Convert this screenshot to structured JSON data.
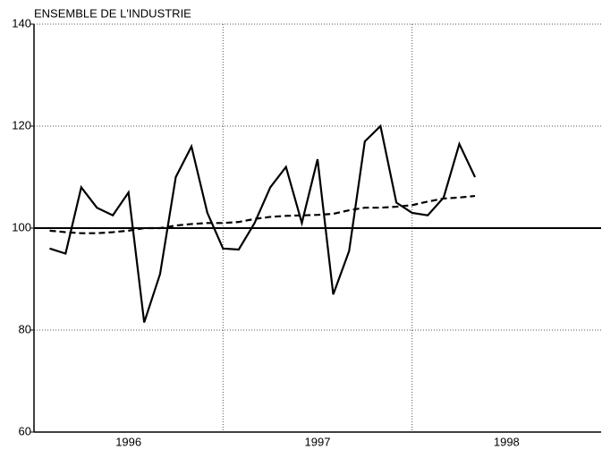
{
  "chart_data": {
    "type": "line",
    "title": "ENSEMBLE DE L'INDUSTRIE",
    "x": [
      1996.083,
      1996.167,
      1996.25,
      1996.333,
      1996.417,
      1996.5,
      1996.583,
      1996.667,
      1996.75,
      1996.833,
      1996.917,
      1997.0,
      1997.083,
      1997.167,
      1997.25,
      1997.333,
      1997.417,
      1997.5,
      1997.583,
      1997.667,
      1997.75,
      1997.833,
      1997.917,
      1998.0,
      1998.083,
      1998.167,
      1998.25,
      1998.333
    ],
    "series": [
      {
        "color": "#000000",
        "dash": false,
        "values": [
          96,
          95,
          108,
          104,
          102.5,
          107,
          81.5,
          91,
          110,
          116,
          103,
          96,
          95.8,
          101,
          108,
          112,
          101,
          113.5,
          87,
          95.5,
          117,
          120,
          105,
          103,
          102.5,
          106,
          116.5,
          110
        ]
      },
      {
        "color": "#000000",
        "dash": true,
        "values": [
          99.5,
          99.2,
          99,
          99,
          99.2,
          99.5,
          100,
          100,
          100.5,
          100.8,
          101,
          101,
          101.2,
          101.8,
          102.2,
          102.4,
          102.5,
          102.6,
          102.8,
          103.5,
          104,
          104,
          104.2,
          104.5,
          105.2,
          105.8,
          106,
          106.3
        ]
      }
    ],
    "xlim": [
      1996,
      1999
    ],
    "xticks": [
      {
        "value": 1996.5,
        "label": "1996"
      },
      {
        "value": 1997.5,
        "label": "1997"
      },
      {
        "value": 1998.5,
        "label": "1998"
      }
    ],
    "xgrid": [
      1997,
      1998
    ],
    "ylim": [
      60,
      140
    ],
    "yticks": [
      60,
      80,
      100,
      120,
      140
    ],
    "hline": 100,
    "grid": true
  }
}
